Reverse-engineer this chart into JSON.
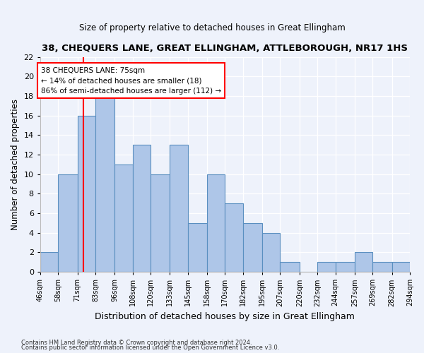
{
  "title": "38, CHEQUERS LANE, GREAT ELLINGHAM, ATTLEBOROUGH, NR17 1HS",
  "subtitle": "Size of property relative to detached houses in Great Ellingham",
  "xlabel": "Distribution of detached houses by size in Great Ellingham",
  "ylabel": "Number of detached properties",
  "bar_color": "#aec6e8",
  "bar_edge_color": "#5a8fc0",
  "bin_edges": [
    46,
    58,
    71,
    83,
    96,
    108,
    120,
    133,
    145,
    158,
    170,
    182,
    195,
    207,
    220,
    232,
    244,
    257,
    269,
    282,
    294
  ],
  "bin_labels": [
    "46sqm",
    "58sqm",
    "71sqm",
    "83sqm",
    "96sqm",
    "108sqm",
    "120sqm",
    "133sqm",
    "145sqm",
    "158sqm",
    "170sqm",
    "182sqm",
    "195sqm",
    "207sqm",
    "220sqm",
    "232sqm",
    "244sqm",
    "257sqm",
    "269sqm",
    "282sqm",
    "294sqm"
  ],
  "counts": [
    2,
    10,
    16,
    18,
    11,
    13,
    10,
    13,
    5,
    10,
    7,
    5,
    4,
    1,
    0,
    1,
    1,
    2,
    1,
    1
  ],
  "ylim": [
    0,
    22
  ],
  "yticks": [
    0,
    2,
    4,
    6,
    8,
    10,
    12,
    14,
    16,
    18,
    20,
    22
  ],
  "property_size": 75,
  "annotation_text": "38 CHEQUERS LANE: 75sqm\n← 14% of detached houses are smaller (18)\n86% of semi-detached houses are larger (112) →",
  "vline_x": 75,
  "background_color": "#eef2fb",
  "grid_color": "#ffffff",
  "footer_line1": "Contains HM Land Registry data © Crown copyright and database right 2024.",
  "footer_line2": "Contains public sector information licensed under the Open Government Licence v3.0."
}
